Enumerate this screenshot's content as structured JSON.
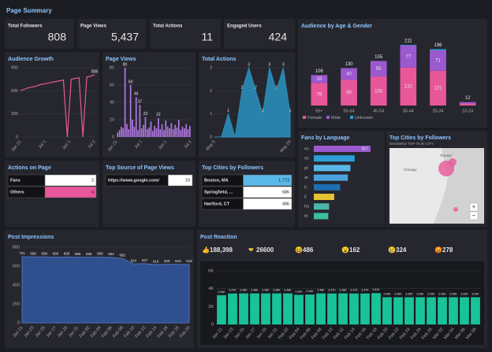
{
  "header": {
    "title": "Page Summary"
  },
  "kpis": [
    {
      "label": "Total Followers",
      "value": 808
    },
    {
      "label": "Page Views",
      "value": 5437,
      "value_label": "5,437"
    },
    {
      "label": "Total Actions",
      "value": 11
    },
    {
      "label": "Engaged Users",
      "value": 424
    }
  ],
  "age_gender": {
    "title": "Audience by Age & Gender",
    "categories": [
      "65+",
      "55-64",
      "45-54",
      "35-44",
      "25-34",
      "18-24"
    ],
    "series": [
      {
        "name": "Female",
        "color": "#e8579a",
        "values": [
          78,
          90,
          100,
          132,
          121,
          7
        ]
      },
      {
        "name": "Male",
        "color": "#9b59d0",
        "values": [
          28,
          40,
          55,
          77,
          71,
          5
        ]
      },
      {
        "name": "Unknown",
        "color": "#2e9fd9",
        "values": [
          0,
          0,
          0,
          2,
          4,
          0
        ]
      }
    ],
    "totals": [
      106,
      130,
      155,
      211,
      196,
      12
    ],
    "ylim": [
      0,
      230
    ]
  },
  "audience_growth": {
    "title": "Audience Growth",
    "values": [
      600,
      620,
      640,
      650,
      660,
      680,
      690,
      700,
      710,
      720,
      730,
      740,
      0,
      750,
      760,
      770,
      0,
      780,
      790,
      808
    ],
    "ylim": [
      0,
      900
    ],
    "yticks": [
      0,
      300,
      600,
      900
    ],
    "xlabels": [
      "Jan 21",
      "Jul 1",
      "Jan 1",
      "Jul 2"
    ],
    "color": "#e8579a"
  },
  "page_views": {
    "title": "Page Views",
    "values": [
      5,
      8,
      12,
      10,
      80,
      15,
      9,
      60,
      20,
      12,
      46,
      8,
      37,
      10,
      14,
      23,
      9,
      11,
      18,
      7,
      13,
      10,
      22,
      9,
      15,
      8,
      19,
      12,
      10,
      16,
      9,
      14,
      11,
      20,
      8,
      12,
      10,
      15,
      9,
      13
    ],
    "ylim": [
      0,
      80
    ],
    "yticks": [
      0,
      20,
      40,
      60,
      80
    ],
    "xlabels": [
      "Jan 21",
      "Jul 1",
      "Jan 1",
      "Jul 2"
    ],
    "color": "#b57be8"
  },
  "total_actions": {
    "title": "Total Actions",
    "values": [
      0,
      0,
      1,
      0,
      2,
      3,
      2,
      1,
      3,
      2,
      3,
      1
    ],
    "ylim": [
      0,
      3
    ],
    "yticks": [
      0,
      1,
      2,
      3
    ],
    "xlabels": [
      "May 5",
      "May 24"
    ],
    "color": "#2a8db8"
  },
  "actions_on_page": {
    "title": "Actions on Page",
    "color": "#e8579a",
    "rows": [
      {
        "label": "Fans",
        "value": 2
      },
      {
        "label": "Others",
        "value": 4
      }
    ]
  },
  "top_source": {
    "title": "Top Source of Page Views",
    "color": "#5ab8e8",
    "rows": [
      {
        "label": "https://www.google.com/",
        "value": 19
      }
    ]
  },
  "top_cities": {
    "title": "Top Cities by Followers",
    "color": "#5ab8e8",
    "rows": [
      {
        "label": "Boston, MA",
        "value": 1773,
        "value_label": "1,773"
      },
      {
        "label": "Springfield, ...",
        "value": 686
      },
      {
        "label": "Hartford, CT",
        "value": 486
      }
    ]
  },
  "fans_language": {
    "title": "Fans by Language",
    "categories": [
      "en",
      "es",
      "pt",
      "ar",
      "fr",
      "it",
      "hu",
      "th"
    ],
    "values": [
      667,
      480,
      430,
      400,
      310,
      240,
      180,
      170
    ],
    "value_labels": [
      "667",
      null,
      null,
      null,
      null,
      null,
      null,
      null
    ],
    "colors": [
      "#9b59d0",
      "#2e9fd9",
      "#5ab8e8",
      "#4aa3df",
      "#1e6fb0",
      "#e5c233",
      "#4fb3a9",
      "#3bbf9f"
    ]
  },
  "map": {
    "title": "Top Cities by Followers",
    "subtitle": "SHOWING TOP 75 IN CITY",
    "labels": [
      "Chicago",
      "Toronto"
    ],
    "zoom": [
      "+",
      "−"
    ]
  },
  "post_impressions": {
    "title": "Post Impressions",
    "categories": [
      "Jan 21",
      "Jan 23",
      "Jan 25",
      "Jan 27",
      "Jan 29",
      "Jan 31",
      "Feb 02",
      "Feb 04",
      "Feb 06",
      "Feb 08",
      "Feb 10",
      "Feb 12",
      "Feb 14",
      "Feb 16",
      "Feb 18",
      "Feb 20"
    ],
    "values": [
      701,
      698,
      699,
      696,
      698,
      695,
      695,
      696,
      692,
      682,
      624,
      627,
      616,
      620,
      619,
      618
    ],
    "ylim": [
      0,
      800
    ],
    "yticks": [
      0,
      200,
      400,
      600,
      800
    ],
    "color": "#2f4f8f"
  },
  "post_reaction": {
    "title": "Post Reaction",
    "reactions": [
      {
        "icon": "👍",
        "value": 188398,
        "value_label": "188,398"
      },
      {
        "icon": "❤",
        "value": 26600
      },
      {
        "icon": "😆",
        "value": 486
      },
      {
        "icon": "😮",
        "value": 162
      },
      {
        "icon": "😢",
        "value": 324
      },
      {
        "icon": "😡",
        "value": 278
      }
    ],
    "categories": [
      "Jan 21",
      "Jan 23",
      "Jan 25",
      "Jan 27",
      "Jan 29",
      "Jan 31",
      "Feb 02",
      "Feb 04",
      "Feb 06",
      "Feb 08",
      "Feb 10",
      "Feb 12",
      "Feb 14",
      "Feb 16",
      "Feb 18",
      "Feb 20",
      "Feb 22",
      "Feb 24",
      "Feb 26",
      "Feb 28",
      "Mar 02",
      "Mar 04",
      "Mar 06",
      "Mar 08"
    ],
    "values": [
      3280,
      3470,
      3480,
      3480,
      3480,
      3480,
      3480,
      3320,
      3350,
      3480,
      3470,
      3480,
      3470,
      3470,
      3510,
      3050,
      3050,
      3050,
      3050,
      3050,
      3050,
      3050,
      3050,
      3050
    ],
    "value_labels": [
      "3.28K",
      "3.47K",
      "3.48K",
      "3.48K",
      "3.48K",
      "3.48K",
      "3.48K",
      "3.32K",
      "3.35K",
      "3.48K",
      "3.47K",
      "3.48K",
      "3.47K",
      "3.47K",
      "3.51K",
      "3.05K",
      "3.05K",
      "3.05K",
      "3.05K",
      "3.05K",
      "3.05K",
      "3.05K",
      "3.05K",
      "3.05K"
    ],
    "ylim": [
      0,
      6000
    ],
    "yticks": [
      0,
      {
        "value": 2000,
        "label": "2K"
      },
      {
        "value": 4000,
        "label": "4K"
      },
      {
        "value": 6000,
        "label": "6K"
      }
    ],
    "color": "#19c39a"
  }
}
